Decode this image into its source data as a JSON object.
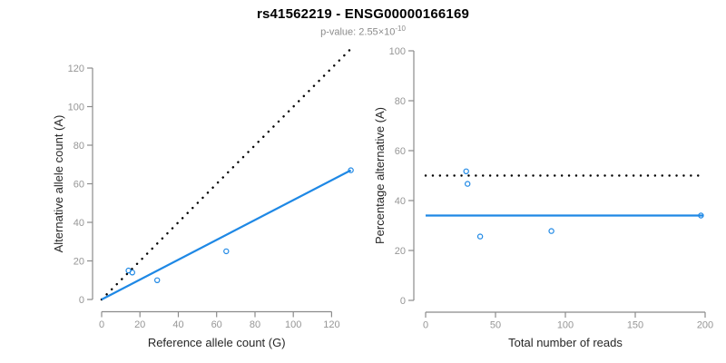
{
  "chart_data": {
    "type": "scatter",
    "title": "rs41562219 - ENSG00000166169",
    "subtitle": {
      "text": "p-value: 2.55×10^-10",
      "prefix": "p-value: 2.55",
      "base": "×10",
      "exponent": "-10"
    },
    "legend": null,
    "grid": false,
    "panels": [
      {
        "name": "allele-counts-panel",
        "type": "scatter",
        "xlabel": "Reference allele count (G)",
        "ylabel": "Alternative allele count (A)",
        "xlim": [
          0,
          130
        ],
        "ylim": [
          0,
          130
        ],
        "xticks": [
          0,
          20,
          40,
          60,
          80,
          100,
          120
        ],
        "yticks": [
          0,
          20,
          40,
          60,
          80,
          100,
          120
        ],
        "points": [
          [
            14,
            15
          ],
          [
            16,
            14
          ],
          [
            29,
            10
          ],
          [
            65,
            25
          ],
          [
            130,
            67
          ]
        ],
        "lines": [
          {
            "name": "identity-line",
            "style": "dotted",
            "color": "black",
            "x1": 0,
            "y1": 0,
            "x2": 130,
            "y2": 130
          },
          {
            "name": "regression-line",
            "style": "solid",
            "color": "accent",
            "x1": 0,
            "y1": 0,
            "x2": 130,
            "y2": 67
          }
        ]
      },
      {
        "name": "percentage-panel",
        "type": "scatter",
        "xlabel": "Total number of reads",
        "ylabel": "Percentage alternative (A)",
        "xlim": [
          0,
          205
        ],
        "ylim": [
          0,
          100
        ],
        "xticks": [
          0,
          50,
          100,
          150,
          200
        ],
        "yticks": [
          0,
          20,
          40,
          60,
          80,
          100
        ],
        "points": [
          [
            29,
            51.7
          ],
          [
            30,
            46.7
          ],
          [
            39,
            25.6
          ],
          [
            90,
            27.8
          ],
          [
            197,
            34
          ]
        ],
        "lines": [
          {
            "name": "fifty-percent-line",
            "style": "dotted",
            "color": "black",
            "x1": 0,
            "y1": 50,
            "x2": 197,
            "y2": 50
          },
          {
            "name": "mean-percentage-line",
            "style": "solid",
            "color": "accent",
            "x1": 0,
            "y1": 34,
            "x2": 199,
            "y2": 34
          }
        ]
      }
    ]
  },
  "colors": {
    "accent_blue": "#1E88E5",
    "axis_gray": "#8B8B8B",
    "tick_label_gray": "#969696",
    "axis_title_dark": "#262626",
    "dotted_black": "#000000",
    "background": "#FFFFFF"
  }
}
